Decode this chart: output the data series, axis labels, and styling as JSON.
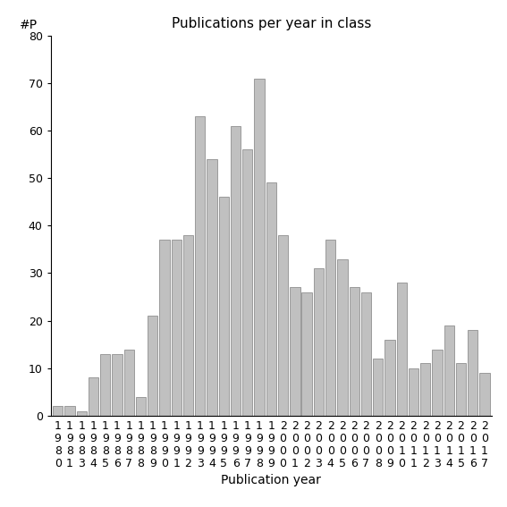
{
  "years": [
    "1980",
    "1981",
    "1983",
    "1984",
    "1985",
    "1986",
    "1987",
    "1988",
    "1989",
    "1990",
    "1991",
    "1992",
    "1993",
    "1994",
    "1995",
    "1996",
    "1997",
    "1998",
    "1999",
    "2000",
    "2001",
    "2002",
    "2003",
    "2004",
    "2005",
    "2006",
    "2007",
    "2008",
    "2009",
    "2010",
    "2011",
    "2012",
    "2013",
    "2014",
    "2015",
    "2016",
    "2017"
  ],
  "values": [
    2,
    2,
    1,
    8,
    13,
    13,
    14,
    4,
    21,
    37,
    37,
    38,
    63,
    54,
    46,
    61,
    56,
    71,
    49,
    38,
    27,
    26,
    31,
    37,
    33,
    27,
    26,
    12,
    16,
    28,
    10,
    11,
    14,
    19,
    11,
    18,
    9
  ],
  "title": "Publications per year in class",
  "xlabel": "Publication year",
  "ylabel": "#P",
  "ylim": [
    0,
    80
  ],
  "yticks": [
    0,
    10,
    20,
    30,
    40,
    50,
    60,
    70,
    80
  ],
  "bar_color": "#c0c0c0",
  "bar_edge_color": "#808080",
  "background_color": "#ffffff",
  "title_fontsize": 11,
  "axis_fontsize": 9,
  "label_fontsize": 10
}
